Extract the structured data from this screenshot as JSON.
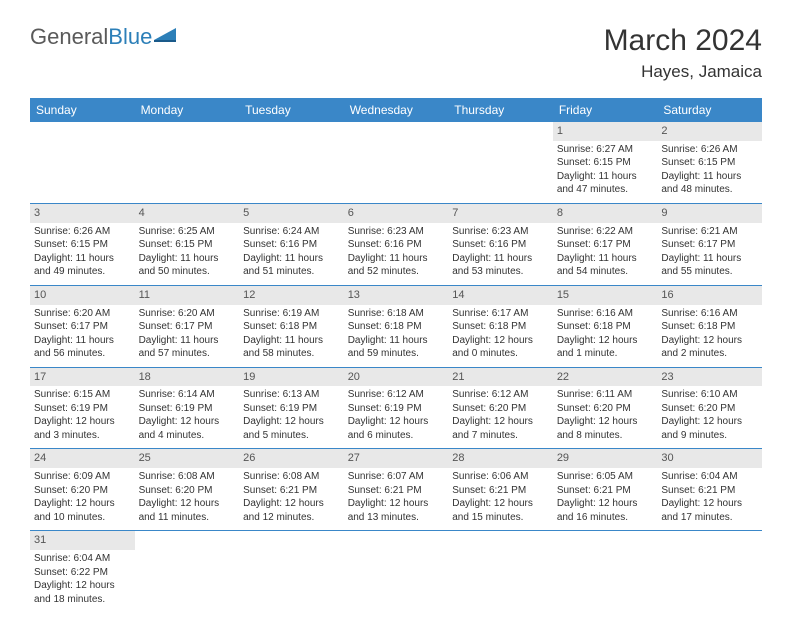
{
  "logo": {
    "text1": "General",
    "text2": "Blue"
  },
  "title": "March 2024",
  "location": "Hayes, Jamaica",
  "colors": {
    "header_bg": "#3a87c8",
    "header_text": "#ffffff",
    "daynum_bg": "#e8e8e8",
    "border": "#3a87c8",
    "logo_gray": "#5a5a5a",
    "logo_blue": "#2c7fb8"
  },
  "day_headers": [
    "Sunday",
    "Monday",
    "Tuesday",
    "Wednesday",
    "Thursday",
    "Friday",
    "Saturday"
  ],
  "weeks": [
    [
      null,
      null,
      null,
      null,
      null,
      {
        "n": "1",
        "sunrise": "Sunrise: 6:27 AM",
        "sunset": "Sunset: 6:15 PM",
        "daylight": "Daylight: 11 hours and 47 minutes."
      },
      {
        "n": "2",
        "sunrise": "Sunrise: 6:26 AM",
        "sunset": "Sunset: 6:15 PM",
        "daylight": "Daylight: 11 hours and 48 minutes."
      }
    ],
    [
      {
        "n": "3",
        "sunrise": "Sunrise: 6:26 AM",
        "sunset": "Sunset: 6:15 PM",
        "daylight": "Daylight: 11 hours and 49 minutes."
      },
      {
        "n": "4",
        "sunrise": "Sunrise: 6:25 AM",
        "sunset": "Sunset: 6:15 PM",
        "daylight": "Daylight: 11 hours and 50 minutes."
      },
      {
        "n": "5",
        "sunrise": "Sunrise: 6:24 AM",
        "sunset": "Sunset: 6:16 PM",
        "daylight": "Daylight: 11 hours and 51 minutes."
      },
      {
        "n": "6",
        "sunrise": "Sunrise: 6:23 AM",
        "sunset": "Sunset: 6:16 PM",
        "daylight": "Daylight: 11 hours and 52 minutes."
      },
      {
        "n": "7",
        "sunrise": "Sunrise: 6:23 AM",
        "sunset": "Sunset: 6:16 PM",
        "daylight": "Daylight: 11 hours and 53 minutes."
      },
      {
        "n": "8",
        "sunrise": "Sunrise: 6:22 AM",
        "sunset": "Sunset: 6:17 PM",
        "daylight": "Daylight: 11 hours and 54 minutes."
      },
      {
        "n": "9",
        "sunrise": "Sunrise: 6:21 AM",
        "sunset": "Sunset: 6:17 PM",
        "daylight": "Daylight: 11 hours and 55 minutes."
      }
    ],
    [
      {
        "n": "10",
        "sunrise": "Sunrise: 6:20 AM",
        "sunset": "Sunset: 6:17 PM",
        "daylight": "Daylight: 11 hours and 56 minutes."
      },
      {
        "n": "11",
        "sunrise": "Sunrise: 6:20 AM",
        "sunset": "Sunset: 6:17 PM",
        "daylight": "Daylight: 11 hours and 57 minutes."
      },
      {
        "n": "12",
        "sunrise": "Sunrise: 6:19 AM",
        "sunset": "Sunset: 6:18 PM",
        "daylight": "Daylight: 11 hours and 58 minutes."
      },
      {
        "n": "13",
        "sunrise": "Sunrise: 6:18 AM",
        "sunset": "Sunset: 6:18 PM",
        "daylight": "Daylight: 11 hours and 59 minutes."
      },
      {
        "n": "14",
        "sunrise": "Sunrise: 6:17 AM",
        "sunset": "Sunset: 6:18 PM",
        "daylight": "Daylight: 12 hours and 0 minutes."
      },
      {
        "n": "15",
        "sunrise": "Sunrise: 6:16 AM",
        "sunset": "Sunset: 6:18 PM",
        "daylight": "Daylight: 12 hours and 1 minute."
      },
      {
        "n": "16",
        "sunrise": "Sunrise: 6:16 AM",
        "sunset": "Sunset: 6:18 PM",
        "daylight": "Daylight: 12 hours and 2 minutes."
      }
    ],
    [
      {
        "n": "17",
        "sunrise": "Sunrise: 6:15 AM",
        "sunset": "Sunset: 6:19 PM",
        "daylight": "Daylight: 12 hours and 3 minutes."
      },
      {
        "n": "18",
        "sunrise": "Sunrise: 6:14 AM",
        "sunset": "Sunset: 6:19 PM",
        "daylight": "Daylight: 12 hours and 4 minutes."
      },
      {
        "n": "19",
        "sunrise": "Sunrise: 6:13 AM",
        "sunset": "Sunset: 6:19 PM",
        "daylight": "Daylight: 12 hours and 5 minutes."
      },
      {
        "n": "20",
        "sunrise": "Sunrise: 6:12 AM",
        "sunset": "Sunset: 6:19 PM",
        "daylight": "Daylight: 12 hours and 6 minutes."
      },
      {
        "n": "21",
        "sunrise": "Sunrise: 6:12 AM",
        "sunset": "Sunset: 6:20 PM",
        "daylight": "Daylight: 12 hours and 7 minutes."
      },
      {
        "n": "22",
        "sunrise": "Sunrise: 6:11 AM",
        "sunset": "Sunset: 6:20 PM",
        "daylight": "Daylight: 12 hours and 8 minutes."
      },
      {
        "n": "23",
        "sunrise": "Sunrise: 6:10 AM",
        "sunset": "Sunset: 6:20 PM",
        "daylight": "Daylight: 12 hours and 9 minutes."
      }
    ],
    [
      {
        "n": "24",
        "sunrise": "Sunrise: 6:09 AM",
        "sunset": "Sunset: 6:20 PM",
        "daylight": "Daylight: 12 hours and 10 minutes."
      },
      {
        "n": "25",
        "sunrise": "Sunrise: 6:08 AM",
        "sunset": "Sunset: 6:20 PM",
        "daylight": "Daylight: 12 hours and 11 minutes."
      },
      {
        "n": "26",
        "sunrise": "Sunrise: 6:08 AM",
        "sunset": "Sunset: 6:21 PM",
        "daylight": "Daylight: 12 hours and 12 minutes."
      },
      {
        "n": "27",
        "sunrise": "Sunrise: 6:07 AM",
        "sunset": "Sunset: 6:21 PM",
        "daylight": "Daylight: 12 hours and 13 minutes."
      },
      {
        "n": "28",
        "sunrise": "Sunrise: 6:06 AM",
        "sunset": "Sunset: 6:21 PM",
        "daylight": "Daylight: 12 hours and 15 minutes."
      },
      {
        "n": "29",
        "sunrise": "Sunrise: 6:05 AM",
        "sunset": "Sunset: 6:21 PM",
        "daylight": "Daylight: 12 hours and 16 minutes."
      },
      {
        "n": "30",
        "sunrise": "Sunrise: 6:04 AM",
        "sunset": "Sunset: 6:21 PM",
        "daylight": "Daylight: 12 hours and 17 minutes."
      }
    ],
    [
      {
        "n": "31",
        "sunrise": "Sunrise: 6:04 AM",
        "sunset": "Sunset: 6:22 PM",
        "daylight": "Daylight: 12 hours and 18 minutes."
      },
      null,
      null,
      null,
      null,
      null,
      null
    ]
  ]
}
